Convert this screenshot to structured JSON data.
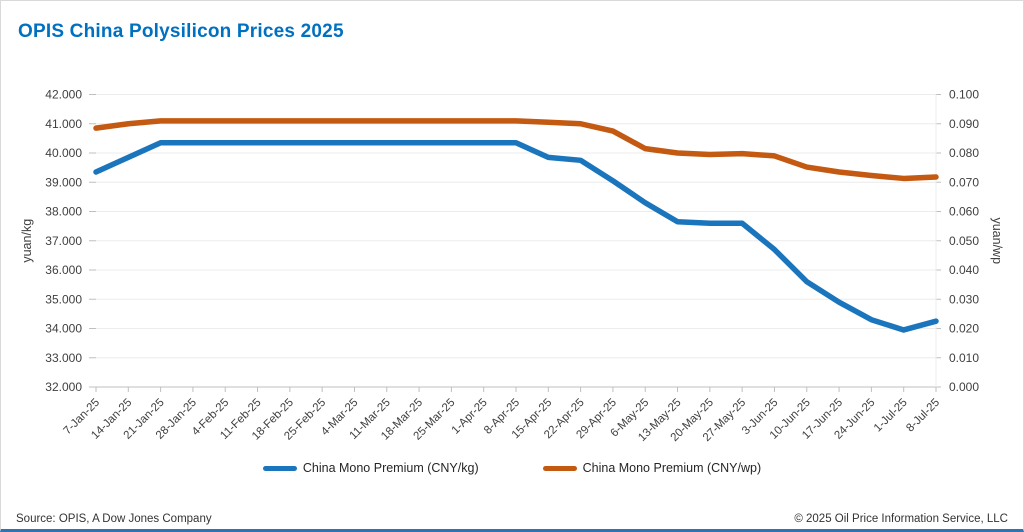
{
  "title": "OPIS China Polysilicon Prices 2025",
  "colors": {
    "title": "#0070c0",
    "series_kg": "#1b75bc",
    "series_wp": "#c45911",
    "grid": "#ececec",
    "axis": "#bfbfbf",
    "tick_text": "#404040",
    "bottom_border": "#2e74b5"
  },
  "legend": {
    "item_kg": "China Mono Premium (CNY/kg)",
    "item_wp": "China Mono Premium (CNY/wp)"
  },
  "footer": {
    "source": "Source: OPIS, A Dow Jones Company",
    "copyright": "© 2025 Oil Price Information Service, LLC"
  },
  "chart_data": {
    "type": "line",
    "title": "OPIS China Polysilicon Prices 2025",
    "grid": true,
    "legend_position": "bottom",
    "categories": [
      "7-Jan-25",
      "14-Jan-25",
      "21-Jan-25",
      "28-Jan-25",
      "4-Feb-25",
      "11-Feb-25",
      "18-Feb-25",
      "25-Feb-25",
      "4-Mar-25",
      "11-Mar-25",
      "18-Mar-25",
      "25-Mar-25",
      "1-Apr-25",
      "8-Apr-25",
      "15-Apr-25",
      "22-Apr-25",
      "29-Apr-25",
      "6-May-25",
      "13-May-25",
      "20-May-25",
      "27-May-25",
      "3-Jun-25",
      "10-Jun-25",
      "17-Jun-25",
      "24-Jun-25",
      "1-Jul-25",
      "8-Jul-25"
    ],
    "series": [
      {
        "name": "China Mono Premium (CNY/kg)",
        "axis": "left",
        "color": "#1b75bc",
        "values": [
          39.35,
          39.85,
          40.35,
          40.35,
          40.35,
          40.35,
          40.35,
          40.35,
          40.35,
          40.35,
          40.35,
          40.35,
          40.35,
          40.35,
          39.85,
          39.75,
          39.05,
          38.3,
          37.65,
          37.6,
          37.6,
          36.7,
          35.6,
          34.9,
          34.3,
          33.95,
          34.25
        ]
      },
      {
        "name": "China Mono Premium (CNY/wp)",
        "axis": "right",
        "color": "#c45911",
        "values": [
          0.0885,
          0.09,
          0.091,
          0.091,
          0.091,
          0.091,
          0.091,
          0.091,
          0.091,
          0.091,
          0.091,
          0.091,
          0.091,
          0.091,
          0.0905,
          0.09,
          0.0875,
          0.0815,
          0.08,
          0.0795,
          0.0798,
          0.079,
          0.0752,
          0.0735,
          0.0723,
          0.0713,
          0.0718
        ]
      }
    ],
    "left_axis": {
      "label": "yuan/kg",
      "min": 32,
      "max": 42,
      "step": 1,
      "ticks": [
        "42.000",
        "41.000",
        "40.000",
        "39.000",
        "38.000",
        "37.000",
        "36.000",
        "35.000",
        "34.000",
        "33.000",
        "32.000"
      ]
    },
    "right_axis": {
      "label": "yuan/wp",
      "min": 0.0,
      "max": 0.1,
      "step": 0.01,
      "ticks": [
        "0.100",
        "0.090",
        "0.080",
        "0.070",
        "0.060",
        "0.050",
        "0.040",
        "0.030",
        "0.020",
        "0.010",
        "0.000"
      ]
    }
  }
}
